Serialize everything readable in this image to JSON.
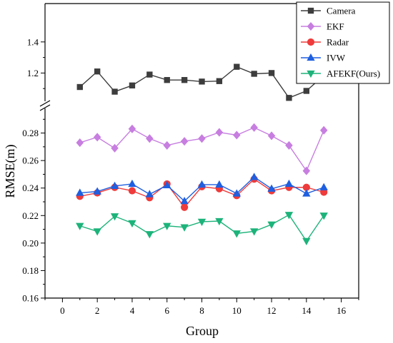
{
  "chart_data": {
    "type": "line",
    "xlabel": "Group",
    "ylabel": "RMSE(m)",
    "xlim": [
      -1,
      17
    ],
    "x_ticks": [
      0,
      2,
      4,
      6,
      8,
      10,
      12,
      14,
      16
    ],
    "axis_break": true,
    "ylim_lower": [
      0.16,
      0.3
    ],
    "y_ticks_lower": [
      "0.16",
      "0.18",
      "0.20",
      "0.22",
      "0.24",
      "0.26",
      "0.28"
    ],
    "ylim_upper": [
      1.0,
      1.5
    ],
    "y_ticks_upper": [
      "1.2",
      "1.4"
    ],
    "grid": false,
    "legend_position": "top-right",
    "x": [
      1,
      2,
      3,
      4,
      5,
      6,
      7,
      8,
      9,
      10,
      11,
      12,
      13,
      14,
      15
    ],
    "series": [
      {
        "name": "Camera",
        "color": "#3d3d3d",
        "marker": "square",
        "values": [
          1.11,
          1.21,
          1.08,
          1.12,
          1.19,
          1.155,
          1.155,
          1.145,
          1.148,
          1.24,
          1.195,
          1.2,
          1.04,
          1.085,
          1.185
        ]
      },
      {
        "name": "EKF",
        "color": "#c77ee0",
        "marker": "diamond",
        "values": [
          0.273,
          0.277,
          0.269,
          0.283,
          0.276,
          0.271,
          0.274,
          0.276,
          0.2805,
          0.2785,
          0.284,
          0.278,
          0.271,
          0.2525,
          0.282
        ]
      },
      {
        "name": "Radar",
        "color": "#ef3b3b",
        "marker": "circle",
        "values": [
          0.234,
          0.2365,
          0.2405,
          0.238,
          0.233,
          0.243,
          0.226,
          0.241,
          0.2395,
          0.2345,
          0.2465,
          0.238,
          0.2405,
          0.2405,
          0.237
        ]
      },
      {
        "name": "IVW",
        "color": "#1f5fe0",
        "marker": "triangle-up",
        "values": [
          0.2365,
          0.2375,
          0.2415,
          0.243,
          0.2355,
          0.242,
          0.2305,
          0.2425,
          0.2425,
          0.236,
          0.248,
          0.2395,
          0.243,
          0.236,
          0.2405
        ]
      },
      {
        "name": "AFEKF(Ours)",
        "color": "#1db37a",
        "marker": "triangle-down",
        "values": [
          0.2125,
          0.2085,
          0.2195,
          0.2145,
          0.2065,
          0.2125,
          0.2115,
          0.2155,
          0.216,
          0.207,
          0.2085,
          0.2135,
          0.2205,
          0.2015,
          0.22
        ]
      }
    ]
  }
}
